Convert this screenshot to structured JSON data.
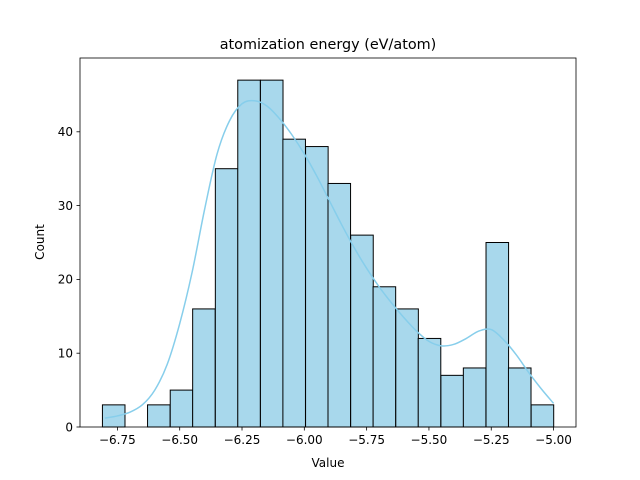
{
  "chart_data": {
    "type": "bar",
    "title": "atomization energy (eV/atom)",
    "xlabel": "Value",
    "ylabel": "Count",
    "xlim": [
      -6.9,
      -4.91
    ],
    "ylim": [
      0,
      50
    ],
    "bar_color": "#a8d8ec",
    "edge_color": "#000000",
    "kde_color": "#87ceeb",
    "grid": false,
    "bin_width": 0.0905,
    "bins": [
      {
        "x0": -6.81,
        "count": 3
      },
      {
        "x0": -6.719,
        "count": 0
      },
      {
        "x0": -6.629,
        "count": 3
      },
      {
        "x0": -6.538,
        "count": 5
      },
      {
        "x0": -6.448,
        "count": 16
      },
      {
        "x0": -6.357,
        "count": 35
      },
      {
        "x0": -6.267,
        "count": 47
      },
      {
        "x0": -6.176,
        "count": 47
      },
      {
        "x0": -6.086,
        "count": 39
      },
      {
        "x0": -5.995,
        "count": 38
      },
      {
        "x0": -5.905,
        "count": 33
      },
      {
        "x0": -5.814,
        "count": 26
      },
      {
        "x0": -5.724,
        "count": 19
      },
      {
        "x0": -5.633,
        "count": 16
      },
      {
        "x0": -5.543,
        "count": 12
      },
      {
        "x0": -5.452,
        "count": 7
      },
      {
        "x0": -5.362,
        "count": 8
      },
      {
        "x0": -5.271,
        "count": 25
      },
      {
        "x0": -5.181,
        "count": 8
      },
      {
        "x0": -5.09,
        "count": 3
      }
    ],
    "kde_x": [
      -6.8,
      -6.75,
      -6.7,
      -6.65,
      -6.6,
      -6.55,
      -6.5,
      -6.45,
      -6.4,
      -6.35,
      -6.3,
      -6.25,
      -6.2,
      -6.15,
      -6.1,
      -6.05,
      -6.0,
      -5.95,
      -5.9,
      -5.85,
      -5.8,
      -5.75,
      -5.7,
      -5.65,
      -5.6,
      -5.55,
      -5.5,
      -5.45,
      -5.4,
      -5.35,
      -5.3,
      -5.25,
      -5.2,
      -5.15,
      -5.1,
      -5.05,
      -5.0
    ],
    "kde_y": [
      1.2,
      1.5,
      2.0,
      3.0,
      5.0,
      8.5,
      14.0,
      21.0,
      29.5,
      37.0,
      41.5,
      43.8,
      44.2,
      43.5,
      41.8,
      39.6,
      37.0,
      34.0,
      30.7,
      27.4,
      24.3,
      21.5,
      19.0,
      16.8,
      14.8,
      13.0,
      11.6,
      11.0,
      11.2,
      12.0,
      13.0,
      13.2,
      11.8,
      9.8,
      7.4,
      5.2,
      3.2
    ],
    "xticks": [
      -6.75,
      -6.5,
      -6.25,
      -6.0,
      -5.75,
      -5.5,
      -5.25,
      -5.0
    ],
    "xtick_labels": [
      "−6.75",
      "−6.50",
      "−6.25",
      "−6.00",
      "−5.75",
      "−5.50",
      "−5.25",
      "−5.00"
    ],
    "yticks": [
      0,
      10,
      20,
      30,
      40
    ],
    "ytick_labels": [
      "0",
      "10",
      "20",
      "30",
      "40"
    ]
  }
}
